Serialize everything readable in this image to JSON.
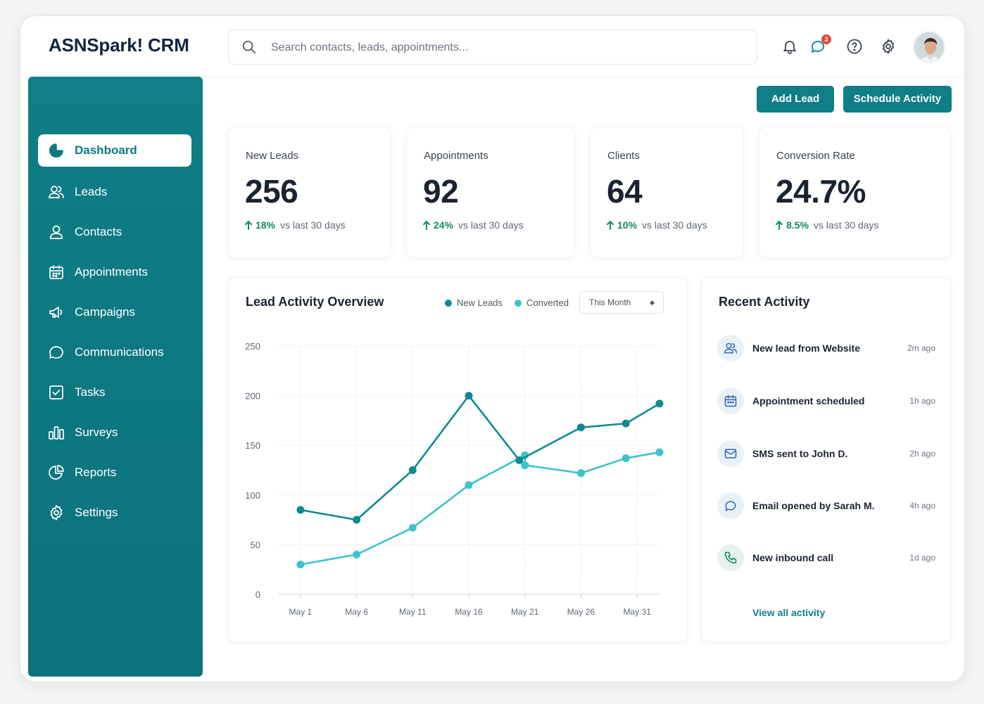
{
  "app": {
    "title": "ASNSpark! CRM"
  },
  "search": {
    "placeholder": "Search contacts, leads, appointments..."
  },
  "header": {
    "notification_count": "3"
  },
  "sidebar": {
    "items": [
      {
        "label": "Dashboard",
        "icon": "pie-chart-icon",
        "active": true
      },
      {
        "label": "Leads",
        "icon": "users-icon"
      },
      {
        "label": "Contacts",
        "icon": "user-icon"
      },
      {
        "label": "Appointments",
        "icon": "calendar-icon"
      },
      {
        "label": "Campaigns",
        "icon": "megaphone-icon"
      },
      {
        "label": "Communications",
        "icon": "chat-bubble-icon"
      },
      {
        "label": "Tasks",
        "icon": "checkbox-icon"
      },
      {
        "label": "Surveys",
        "icon": "bar-survey-icon"
      },
      {
        "label": "Reports",
        "icon": "report-pie-icon"
      },
      {
        "label": "Settings",
        "icon": "gear-icon"
      }
    ]
  },
  "actions": {
    "add_lead": "Add Lead",
    "schedule_activity": "Schedule Activity"
  },
  "kpis": [
    {
      "label": "New Leads",
      "value": "256",
      "change": "18%",
      "period": "vs last 30 days"
    },
    {
      "label": "Appointments",
      "value": "92",
      "change": "24%",
      "period": "vs last 30 days"
    },
    {
      "label": "Clients",
      "value": "64",
      "change": "10%",
      "period": "vs last 30 days"
    },
    {
      "label": "Conversion Rate",
      "value": "24.7%",
      "change": "8.5%",
      "period": "vs last 30 days"
    }
  ],
  "chart": {
    "title": "Lead Activity Overview",
    "range": "This Month"
  },
  "chart_data": {
    "type": "line",
    "title": "Lead Activity Overview",
    "x": [
      "May 1",
      "May 6",
      "May 11",
      "May 16",
      "May 21",
      "May 26",
      "May 31"
    ],
    "x_positions": [
      1,
      6,
      11,
      16,
      21,
      26,
      31
    ],
    "y_ticks": [
      0,
      50,
      100,
      150,
      200,
      250
    ],
    "ylim": [
      0,
      250
    ],
    "xlim": [
      -1,
      33
    ],
    "grid": true,
    "legend": "top-right",
    "series": [
      {
        "name": "New Leads",
        "color": "#0f8a8f",
        "points": [
          [
            1,
            85
          ],
          [
            6,
            75
          ],
          [
            11,
            125
          ],
          [
            16,
            200
          ],
          [
            20.5,
            135
          ],
          [
            26,
            168
          ],
          [
            30,
            172
          ],
          [
            33,
            192
          ]
        ]
      },
      {
        "name": "Converted",
        "color": "#3cc3cc",
        "points": [
          [
            1,
            30
          ],
          [
            6,
            40
          ],
          [
            11,
            67
          ],
          [
            16,
            110
          ],
          [
            21,
            140
          ],
          [
            21,
            130
          ],
          [
            26,
            122
          ],
          [
            30,
            137
          ],
          [
            33,
            143
          ]
        ]
      }
    ]
  },
  "activity": {
    "title": "Recent Activity",
    "items": [
      {
        "text": "New lead from Website",
        "time": "2m ago",
        "icon": "users-icon"
      },
      {
        "text": "Appointment scheduled",
        "time": "1h ago",
        "icon": "calendar-icon"
      },
      {
        "text": "SMS sent to John D.",
        "time": "2h ago",
        "icon": "envelope-icon"
      },
      {
        "text": "Email opened by Sarah M.",
        "time": "4h ago",
        "icon": "chat-bubble-icon"
      },
      {
        "text": "New inbound call",
        "time": "1d ago",
        "icon": "phone-icon"
      }
    ],
    "view_all": "View all activity"
  },
  "colors": {
    "brand": "#0f7e86",
    "accent_light": "#3cc3cc",
    "positive": "#138a5c",
    "badge": "#e8493a"
  }
}
